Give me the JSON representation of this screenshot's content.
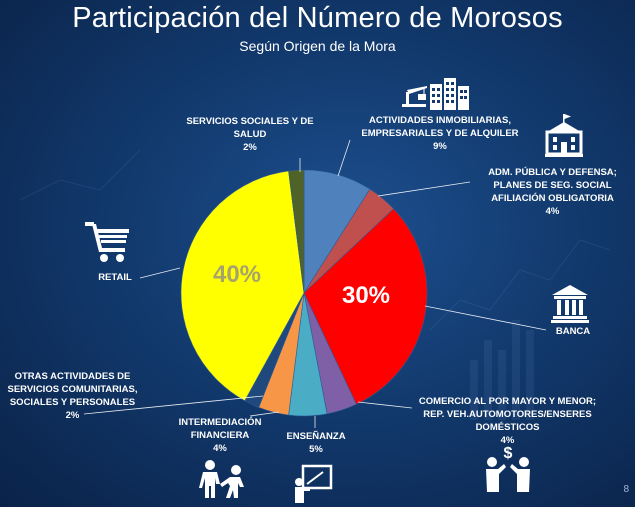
{
  "title": "Participación del Número de Morosos",
  "subtitle": "Según Origen de la Mora",
  "page_number": "8",
  "labels": {
    "servicios_sociales": {
      "line1": "SERVICIOS SOCIALES Y DE",
      "line2": "SALUD",
      "pct": "2%"
    },
    "actividades_inmobiliarias": {
      "line1": "ACTIVIDADES INMOBILIARIAS,",
      "line2": "EMPRESARIALES Y DE ALQUILER",
      "pct": "9%"
    },
    "adm_publica": {
      "line1": "ADM. PÚBLICA Y DEFENSA;",
      "line2": "PLANES DE SEG. SOCIAL",
      "line3": "AFILIACIÓN OBLIGATORIA",
      "pct": "4%"
    },
    "retail": {
      "line1": "RETAIL"
    },
    "banca": {
      "line1": "BANCA"
    },
    "otras_actividades": {
      "line1": "OTRAS ACTIVIDADES DE",
      "line2": "SERVICIOS COMUNITARIAS,",
      "line3": "SOCIALES Y PERSONALES",
      "pct": "2%"
    },
    "intermediacion": {
      "line1": "INTERMEDIACIÓN",
      "line2": "FINANCIERA",
      "pct": "4%"
    },
    "ensenanza": {
      "line1": "ENSEÑANZA",
      "pct": "5%"
    },
    "comercio": {
      "line1": "COMERCIO AL POR MAYOR Y MENOR;",
      "line2": "REP. VEH.AUTOMOTORES/ENSERES",
      "line3": "DOMÉSTICOS",
      "pct": "4%"
    }
  },
  "pie_labels": {
    "retail": "40%",
    "banca": "30%"
  },
  "icons": [
    "construction-crane-icon",
    "buildings-icon",
    "government-building-icon",
    "shopping-cart-icon",
    "bank-icon",
    "people-helping-icon",
    "teacher-board-icon",
    "money-exchange-icon"
  ],
  "chart_data": {
    "type": "pie",
    "title": "Participación del Número de Morosos",
    "subtitle": "Según Origen de la Mora",
    "slices": [
      {
        "category": "ACTIVIDADES INMOBILIARIAS, EMPRESARIALES Y DE ALQUILER",
        "value": 9,
        "color": "#4f81bd"
      },
      {
        "category": "ADM. PÚBLICA Y DEFENSA; PLANES DE SEG. SOCIAL AFILIACIÓN OBLIGATORIA",
        "value": 4,
        "color": "#c0504d"
      },
      {
        "category": "BANCA",
        "value": 30,
        "color": "#ff0000"
      },
      {
        "category": "COMERCIO AL POR MAYOR Y MENOR; REP. VEH.AUTOMOTORES/ENSERES DOMÉSTICOS",
        "value": 4,
        "color": "#7f5fa6"
      },
      {
        "category": "ENSEÑANZA",
        "value": 5,
        "color": "#4bacc6"
      },
      {
        "category": "INTERMEDIACIÓN FINANCIERA",
        "value": 4,
        "color": "#f79646"
      },
      {
        "category": "OTRAS ACTIVIDADES DE SERVICIOS COMUNITARIAS, SOCIALES Y PERSONALES",
        "value": 2,
        "color": "#1f497d"
      },
      {
        "category": "RETAIL",
        "value": 40,
        "color": "#ffff00"
      },
      {
        "category": "SERVICIOS SOCIALES Y DE SALUD",
        "value": 2,
        "color": "#4f6228"
      }
    ],
    "data_labels_shown": [
      "40%",
      "30%"
    ],
    "legend": "none"
  }
}
